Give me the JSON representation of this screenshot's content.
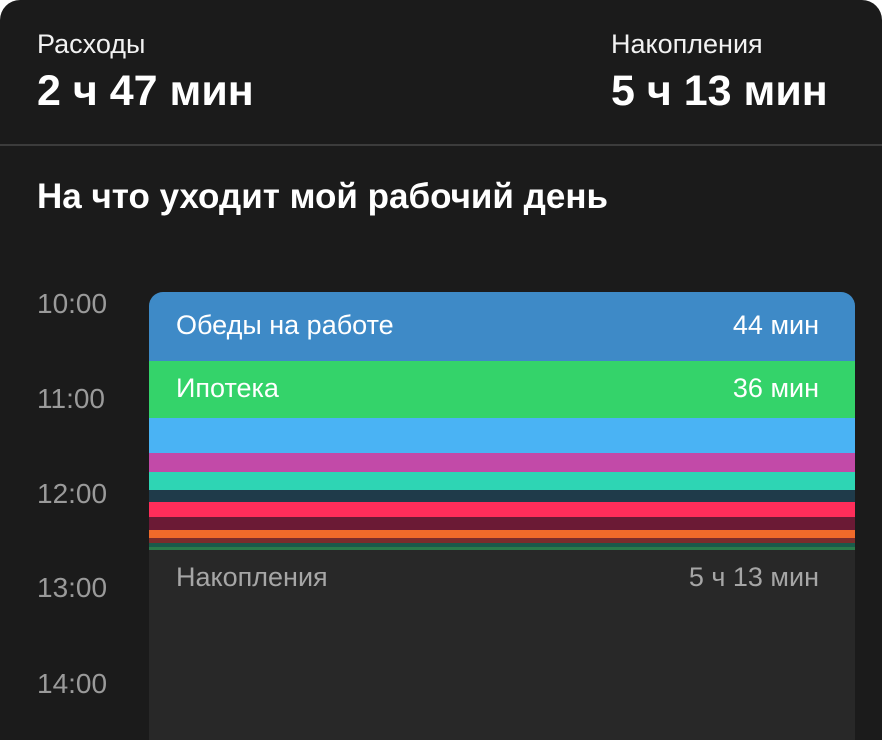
{
  "summary": {
    "expenses_label": "Расходы",
    "expenses_value": "2 ч 47 мин",
    "savings_label": "Накопления",
    "savings_value": "5 ч 13 мин"
  },
  "section_title": "На что уходит мой рабочий день",
  "time_axis": [
    "10:00",
    "11:00",
    "12:00",
    "13:00",
    "14:00"
  ],
  "segments": [
    {
      "label": "Обеды на работе",
      "value": "44 мин",
      "color": "#3e8ac7"
    },
    {
      "label": "Ипотека",
      "value": "36 мин",
      "color": "#34d36a"
    },
    {
      "color": "#4ab3f4"
    },
    {
      "color": "#c24aa8"
    },
    {
      "color": "#2ed5b4"
    },
    {
      "color": "#1f3b4a"
    },
    {
      "color": "#ff2d5a"
    },
    {
      "color": "#6b1a35"
    },
    {
      "color": "#f06a2a"
    },
    {
      "color": "#7a2c2c"
    },
    {
      "color": "#1a5a4a"
    },
    {
      "color": "#2a7a4a"
    }
  ],
  "savings": {
    "label": "Накопления",
    "value": "5 ч 13 мин",
    "color": "#282828"
  }
}
